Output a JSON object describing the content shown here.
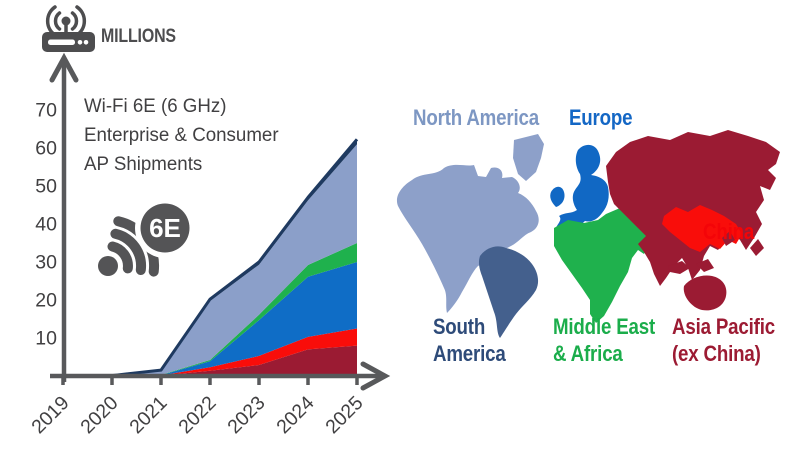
{
  "header": {
    "millions_label": "MILLIONS"
  },
  "chart": {
    "title_lines": [
      "Wi-Fi 6E (6 GHz)",
      "Enterprise & Consumer",
      "AP Shipments"
    ],
    "badge_label": "6E",
    "axis_color": "#58595B",
    "tick_label_color": "#414042"
  },
  "chart_data": {
    "type": "area",
    "stacked": true,
    "title": "Wi-Fi 6E (6 GHz) Enterprise & Consumer AP Shipments",
    "unit": "millions",
    "categories": [
      "2019",
      "2020",
      "2021",
      "2022",
      "2023",
      "2024",
      "2025"
    ],
    "series": [
      {
        "name": "Asia Pacific (ex China)",
        "id": "asia-pacific-ex-china",
        "color": "#9B1B33",
        "values": [
          0,
          0,
          0.1,
          1.4,
          2.9,
          7.0,
          8.0
        ]
      },
      {
        "name": "China",
        "id": "china",
        "color": "#F90D0A",
        "values": [
          0,
          0,
          0.05,
          0.9,
          2.4,
          3.3,
          4.5
        ]
      },
      {
        "name": "Europe",
        "id": "europe",
        "color": "#0F6DC6",
        "values": [
          0,
          0,
          0.1,
          1.6,
          9.4,
          15.8,
          17.5
        ]
      },
      {
        "name": "Middle East & Africa",
        "id": "middle-east-africa",
        "color": "#1FB14D",
        "values": [
          0,
          0,
          0.05,
          0.3,
          1.4,
          3.1,
          5.0
        ]
      },
      {
        "name": "North America",
        "id": "north-america",
        "color": "#8B9FC9",
        "values": [
          0,
          0.1,
          1.2,
          15.5,
          13.2,
          17.0,
          26.0
        ]
      },
      {
        "name": "South America",
        "id": "south-america",
        "color": "#1F3A60",
        "values": [
          0,
          0,
          0.05,
          0.5,
          0.7,
          0.8,
          1.3
        ]
      }
    ],
    "totals_by_year": [
      0,
      0.1,
      1.55,
      20.2,
      30.0,
      47.0,
      62.3
    ],
    "total_line_color": "#1F3A60",
    "yticks": [
      10,
      20,
      30,
      40,
      50,
      60,
      70
    ],
    "ylim": [
      0,
      70
    ],
    "grid": false,
    "legend_position": "map-right"
  },
  "map": {
    "regions": [
      {
        "id": "north-america",
        "label_lines": [
          "North America"
        ],
        "color": "#8DA0C9",
        "label_color": "#7D97C3"
      },
      {
        "id": "europe",
        "label_lines": [
          "Europe"
        ],
        "color": "#1168C4",
        "label_color": "#1467C5"
      },
      {
        "id": "china",
        "label_lines": [
          "China"
        ],
        "color": "#F90D0A",
        "label_color": "#F40408"
      },
      {
        "id": "south-america",
        "label_lines": [
          "South",
          "America"
        ],
        "color": "#44608D",
        "label_color": "#2E4B79"
      },
      {
        "id": "middle-east-africa",
        "label_lines": [
          "Middle East",
          "& Africa"
        ],
        "color": "#1FB14D",
        "label_color": "#1BAD4B"
      },
      {
        "id": "asia-pacific-ex-china",
        "label_lines": [
          "Asia Pacific",
          "(ex China)"
        ],
        "color": "#9B1B33",
        "label_color": "#9C1B33"
      }
    ]
  }
}
